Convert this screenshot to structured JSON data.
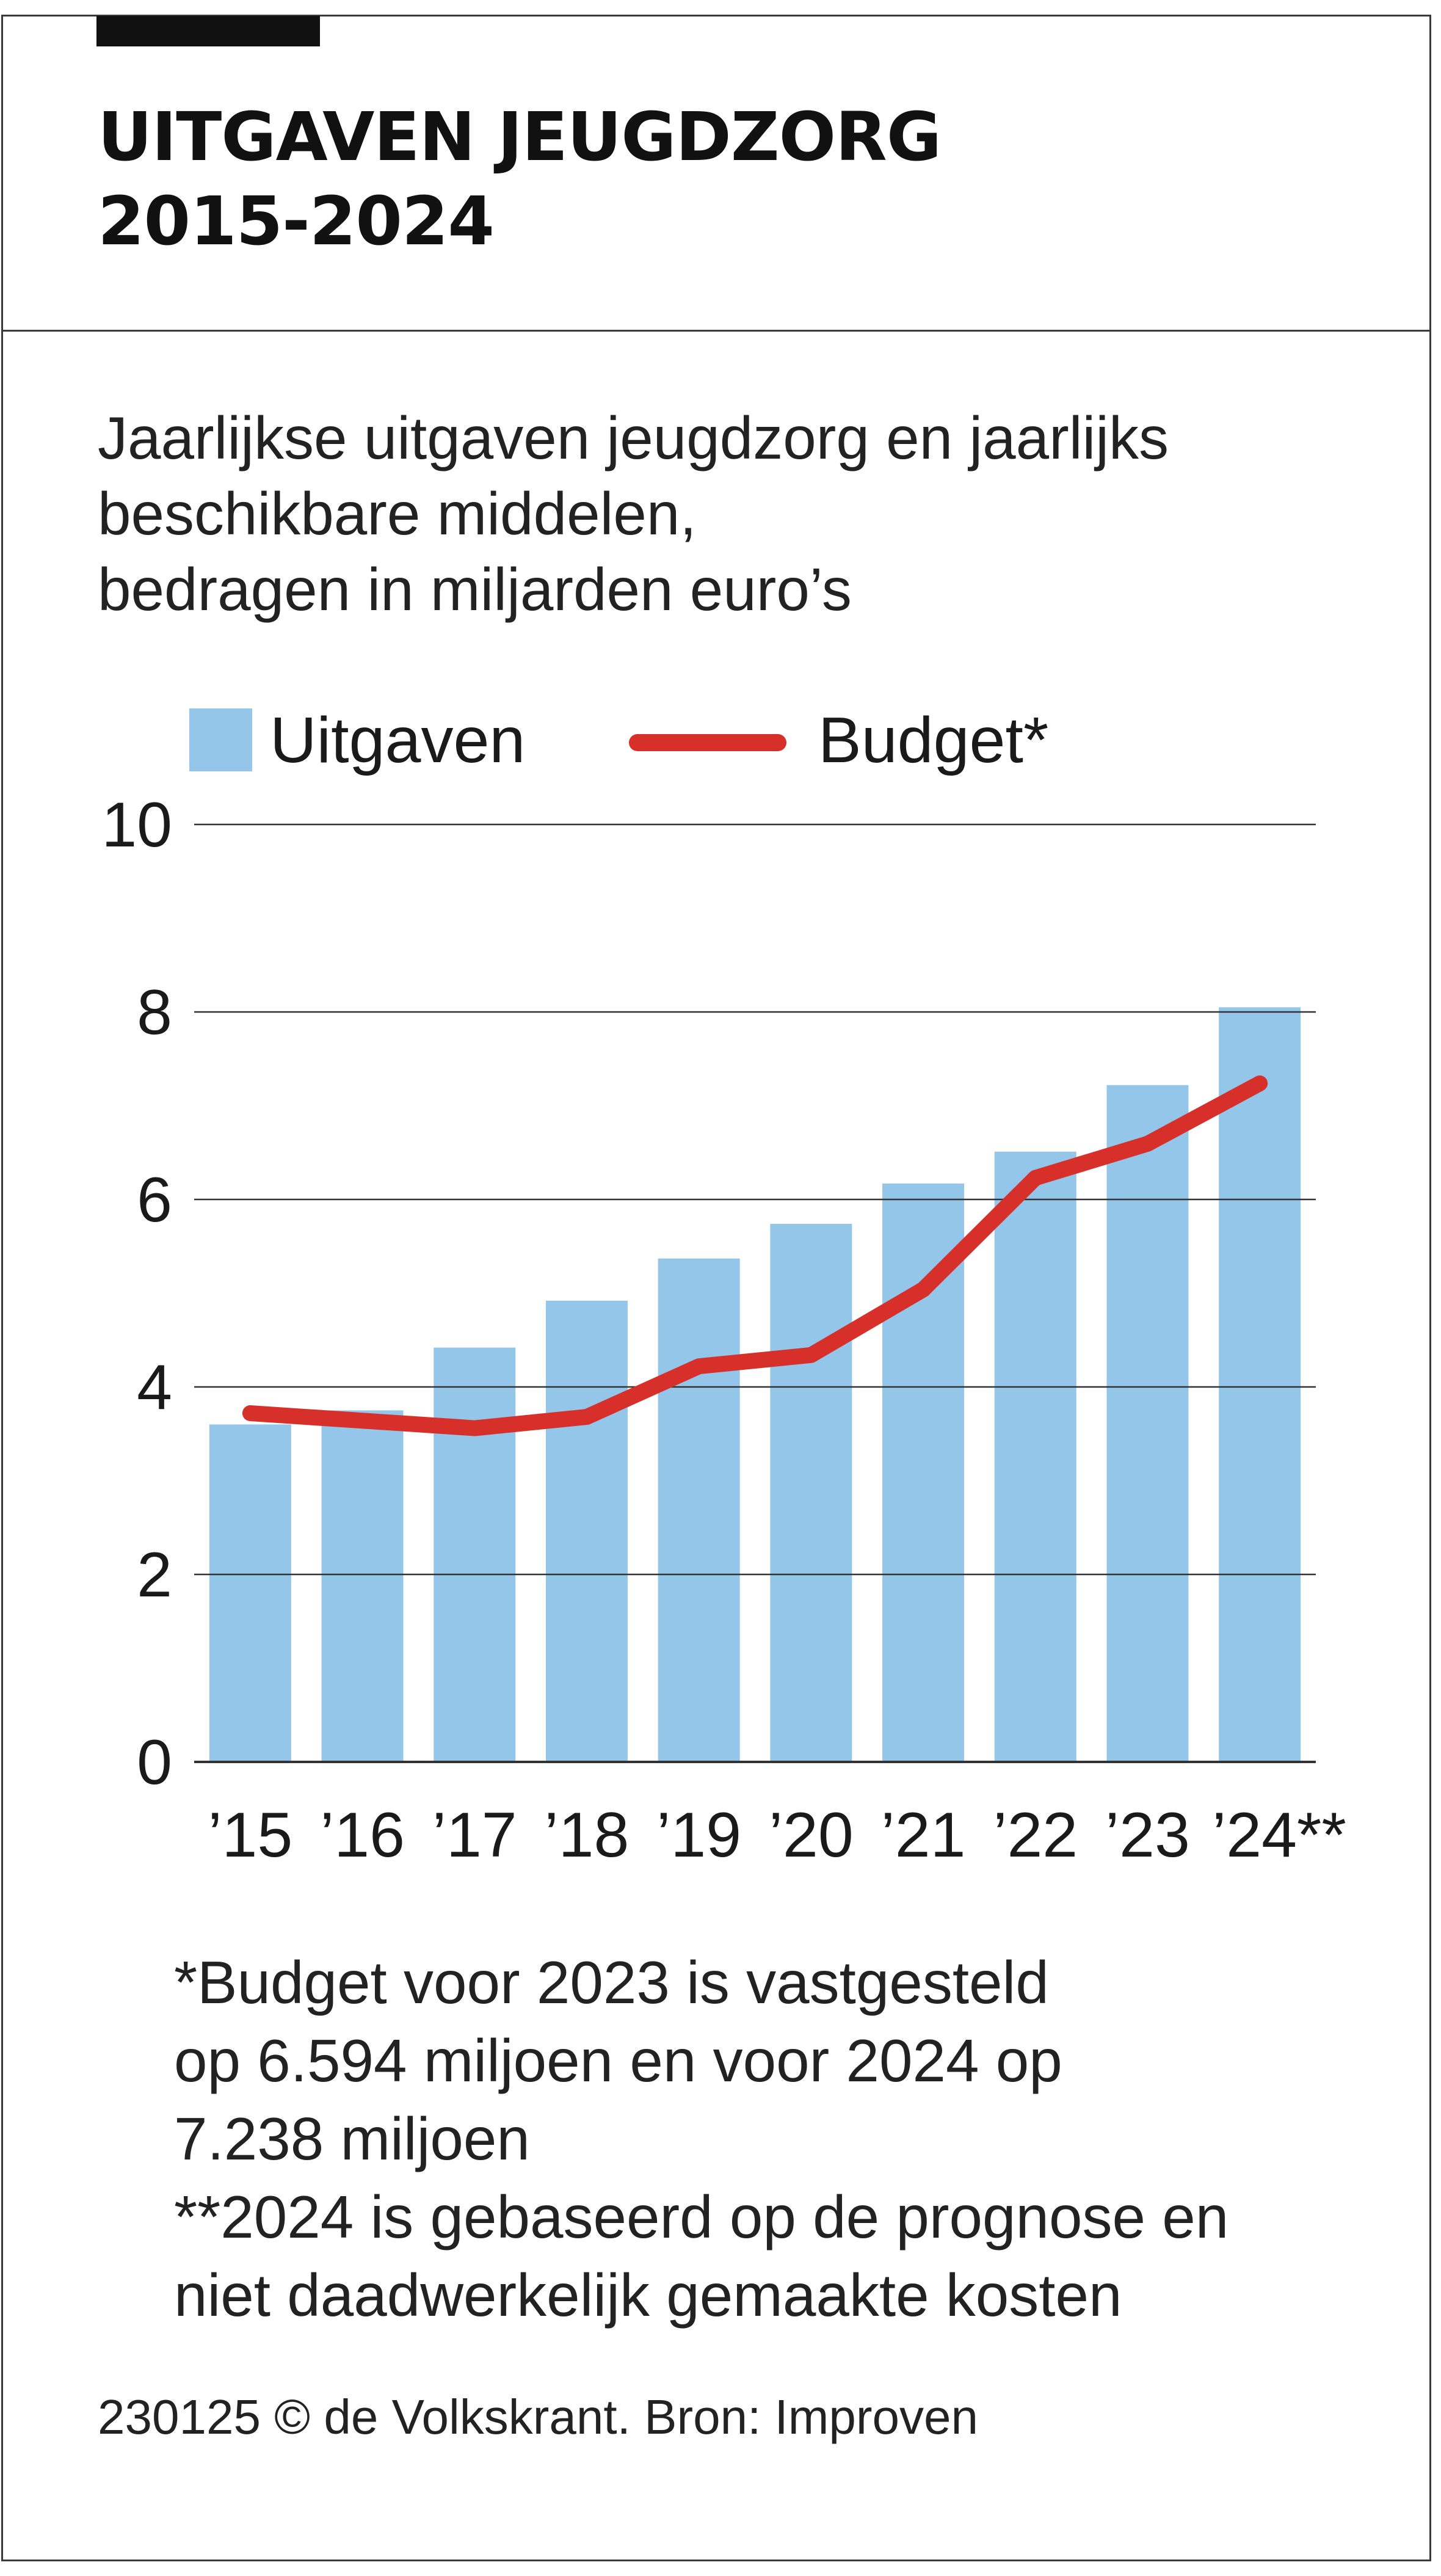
{
  "header": {
    "title_line1": "UITGAVEN JEUGDZORG",
    "title_line2": "2015-2024"
  },
  "subtitle": {
    "line1": "Jaarlijkse uitgaven jeugdzorg en jaarlijks",
    "line2": "beschikbare middelen,",
    "line3": "bedragen in miljarden euro’s"
  },
  "legend": {
    "bar_label": "Uitgaven",
    "line_label": "Budget*"
  },
  "colors": {
    "bar": "#94c6ea",
    "line": "#d7302a",
    "grid": "#333333"
  },
  "chart_data": {
    "type": "bar",
    "title": "UITGAVEN JEUGDZORG 2015-2024",
    "xlabel": "",
    "ylabel": "bedragen in miljarden euro’s",
    "ylim": [
      0,
      10
    ],
    "yticks": [
      0,
      2,
      4,
      6,
      8,
      10
    ],
    "categories": [
      "’15",
      "’16",
      "’17",
      "’18",
      "’19",
      "’20",
      "’21",
      "’22",
      "’23",
      "’24**"
    ],
    "series": [
      {
        "name": "Uitgaven",
        "kind": "bar",
        "values": [
          3.6,
          3.75,
          4.42,
          4.92,
          5.37,
          5.74,
          6.17,
          6.51,
          7.22,
          8.05
        ]
      },
      {
        "name": "Budget*",
        "kind": "line",
        "values": [
          3.72,
          3.64,
          3.56,
          3.68,
          4.22,
          4.34,
          5.04,
          6.23,
          6.594,
          7.238
        ]
      }
    ]
  },
  "notes": {
    "line1": "*Budget voor 2023 is vastgesteld",
    "line2": "op 6.594 miljoen en voor 2024 op",
    "line3": "7.238 miljoen",
    "line4": "**2024 is gebaseerd op de prognose en",
    "line5": "niet daadwerkelijk gemaakte kosten"
  },
  "footer": {
    "source": "230125 © de Volkskrant. Bron: Improven"
  }
}
